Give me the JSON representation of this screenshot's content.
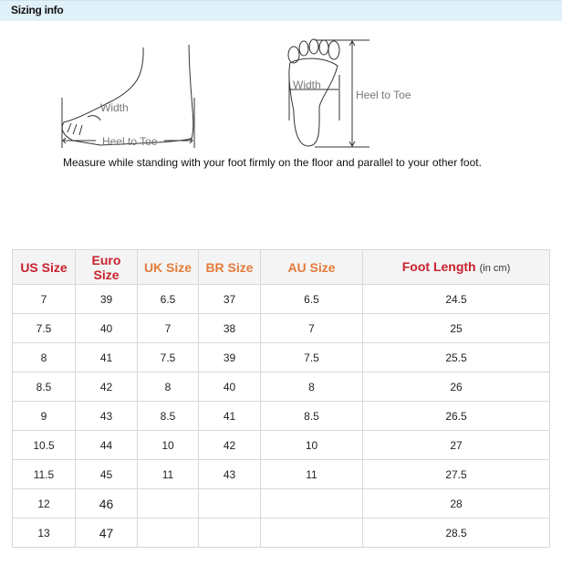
{
  "header": {
    "title": "Sizing info"
  },
  "illustration": {
    "width_label": "Width",
    "heel_to_toe_label": "Heel to Toe",
    "instruction": "Measure while standing with your foot firmly on the floor and parallel to your other foot."
  },
  "table": {
    "headers": [
      {
        "label": "US Size",
        "color": "#c8222e"
      },
      {
        "label": "Euro Size",
        "color": "#c8222e"
      },
      {
        "label": "UK Size",
        "color": "#e47b3b"
      },
      {
        "label": "BR Size",
        "color": "#e47b3b"
      },
      {
        "label": "AU Size",
        "color": "#e47b3b"
      },
      {
        "label": "Foot Length",
        "unit": "(in cm)",
        "color": "#c8222e"
      }
    ],
    "rows": [
      [
        "7",
        "39",
        "6.5",
        "37",
        "6.5",
        "24.5"
      ],
      [
        "7.5",
        "40",
        "7",
        "38",
        "7",
        "25"
      ],
      [
        "8",
        "41",
        "7.5",
        "39",
        "7.5",
        "25.5"
      ],
      [
        "8.5",
        "42",
        "8",
        "40",
        "8",
        "26"
      ],
      [
        "9",
        "43",
        "8.5",
        "41",
        "8.5",
        "26.5"
      ],
      [
        "10.5",
        "44",
        "10",
        "42",
        "10",
        "27"
      ],
      [
        "11.5",
        "45",
        "11",
        "43",
        "11",
        "27.5"
      ],
      [
        "12",
        "46",
        "",
        "",
        "",
        "28"
      ],
      [
        "13",
        "47",
        "",
        "",
        "",
        "28.5"
      ]
    ]
  }
}
